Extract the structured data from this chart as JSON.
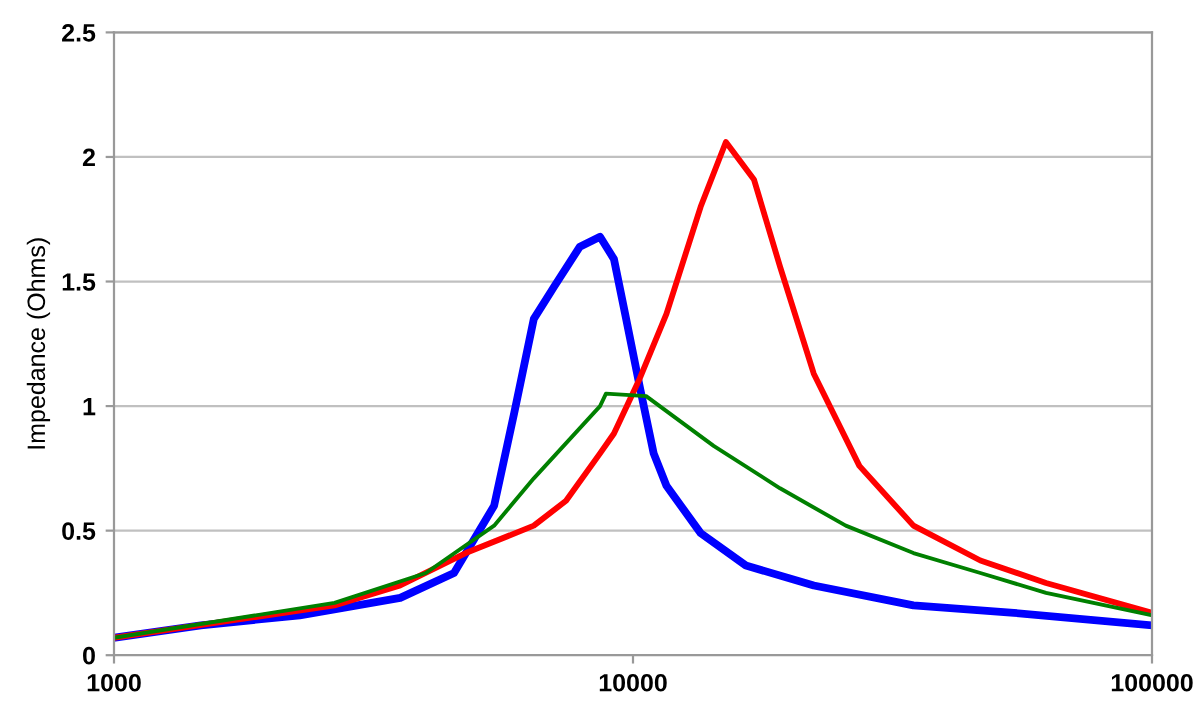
{
  "chart_data": {
    "type": "line",
    "ylabel": "Impedance (Ohms)",
    "log": "x",
    "xlim": [
      1000,
      100000
    ],
    "xticks": [
      1000,
      10000,
      100000
    ],
    "ylim": [
      0,
      2.5
    ],
    "yticks": [
      0,
      0.5,
      1,
      1.5,
      2,
      2.5
    ],
    "grid": "y",
    "line_style": "solid",
    "series": [
      {
        "color": "#0000ff",
        "x": [
          1000,
          1470,
          2280,
          3560,
          4520,
          5400,
          5900,
          6440,
          7050,
          7900,
          8640,
          9190,
          9700,
          10300,
          10960,
          11600,
          13500,
          16500,
          22300,
          34700,
          54200,
          100000
        ],
        "values": [
          0.07,
          0.12,
          0.16,
          0.23,
          0.33,
          0.6,
          0.97,
          1.35,
          1.48,
          1.64,
          1.68,
          1.59,
          1.35,
          1.08,
          0.81,
          0.68,
          0.49,
          0.36,
          0.28,
          0.2,
          0.17,
          0.12
        ]
      },
      {
        "color": "#ff0000",
        "x": [
          1000,
          2660,
          3560,
          4760,
          6440,
          7430,
          8640,
          9190,
          10300,
          11600,
          13500,
          15100,
          17100,
          19200,
          22300,
          27300,
          34700,
          46700,
          62500,
          100000
        ],
        "values": [
          0.07,
          0.2,
          0.28,
          0.41,
          0.52,
          0.62,
          0.81,
          0.89,
          1.11,
          1.37,
          1.8,
          2.06,
          1.91,
          1.56,
          1.13,
          0.76,
          0.52,
          0.38,
          0.29,
          0.17
        ]
      },
      {
        "color": "#008000",
        "x": [
          1000,
          2660,
          3990,
          5400,
          6440,
          8640,
          8870,
          10600,
          14300,
          19200,
          25700,
          34700,
          46700,
          62500,
          100000
        ],
        "values": [
          0.07,
          0.21,
          0.33,
          0.52,
          0.71,
          1.0,
          1.05,
          1.04,
          0.84,
          0.67,
          0.52,
          0.41,
          0.33,
          0.25,
          0.16
        ]
      }
    ]
  }
}
